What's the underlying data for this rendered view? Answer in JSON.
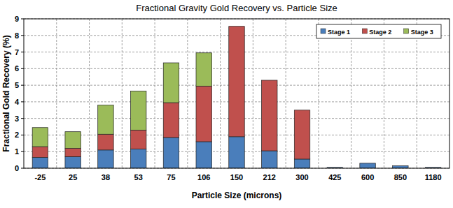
{
  "chart_data": {
    "type": "bar",
    "title": "Fractional Gravity Gold Recovery vs. Particle Size",
    "x_label": "Particle Size (microns)",
    "y_label": "Fractional Gold Recovery (%)",
    "categories": [
      "-25",
      "25",
      "38",
      "53",
      "75",
      "106",
      "150",
      "212",
      "300",
      "425",
      "600",
      "850",
      "1180"
    ],
    "series": [
      {
        "name": "Stage 1",
        "color": "#4a7ebb",
        "values": [
          0.65,
          0.7,
          1.1,
          1.15,
          1.85,
          1.6,
          1.9,
          1.05,
          0.55,
          0.05,
          0.3,
          0.15,
          0.05
        ]
      },
      {
        "name": "Stage 2",
        "color": "#c0504d",
        "values": [
          0.65,
          0.5,
          0.95,
          1.15,
          2.1,
          3.35,
          6.65,
          4.25,
          2.95,
          0,
          0,
          0,
          0
        ]
      },
      {
        "name": "Stage 3",
        "color": "#9bbb59",
        "values": [
          1.15,
          1.0,
          1.75,
          2.35,
          2.4,
          2.0,
          0,
          0,
          0,
          0,
          0,
          0,
          0
        ]
      }
    ],
    "ylim": [
      0,
      9
    ],
    "yticks": [
      0,
      1,
      2,
      3,
      4,
      5,
      6,
      7,
      8,
      9
    ],
    "stacked": true,
    "grid": true,
    "legend": "upper right"
  }
}
